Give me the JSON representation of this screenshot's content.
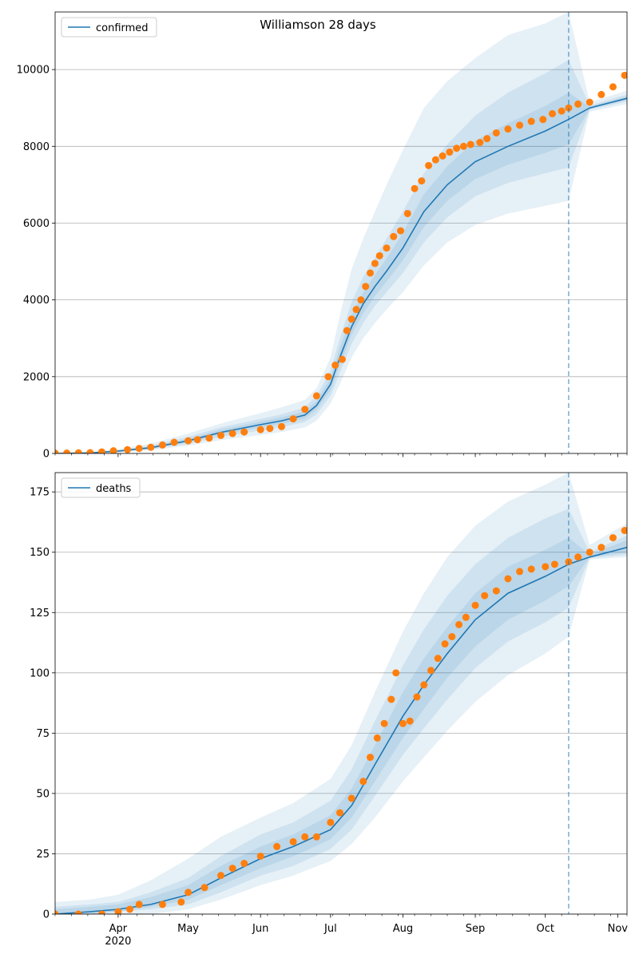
{
  "title": "Williamson 28 days",
  "colors": {
    "model": "#1f77b4",
    "observed": "#ff7f0e",
    "band": "#1f77b4",
    "grid": "#b0b0b0",
    "cutoff": "#1f77b4"
  },
  "chart_data": [
    {
      "type": "line",
      "legend": "confirmed",
      "legend_placement": "top-left",
      "x_start": "2020-03-05",
      "x_end": "2020-11-05",
      "xtick_labels": [
        "Apr",
        "May",
        "Jun",
        "Jul",
        "Aug",
        "Sep",
        "Oct",
        "Nov"
      ],
      "xtick_dates": [
        "2020-04-01",
        "2020-05-01",
        "2020-06-01",
        "2020-07-01",
        "2020-08-01",
        "2020-09-01",
        "2020-10-01",
        "2020-11-01"
      ],
      "year_label": "2020",
      "ylim": [
        0,
        11500
      ],
      "yticks": [
        0,
        2000,
        4000,
        6000,
        8000,
        10000
      ],
      "cutoff_date": "2020-10-11",
      "grid": true,
      "model_x": [
        "2020-03-05",
        "2020-03-20",
        "2020-04-01",
        "2020-04-15",
        "2020-05-01",
        "2020-05-15",
        "2020-06-01",
        "2020-06-10",
        "2020-06-20",
        "2020-06-25",
        "2020-07-01",
        "2020-07-05",
        "2020-07-10",
        "2020-07-15",
        "2020-07-20",
        "2020-07-25",
        "2020-08-01",
        "2020-08-10",
        "2020-08-20",
        "2020-09-01",
        "2020-09-15",
        "2020-10-01",
        "2020-10-11",
        "2020-10-20",
        "2020-11-05"
      ],
      "model_y": [
        0,
        15,
        60,
        150,
        330,
        550,
        750,
        850,
        1000,
        1250,
        1800,
        2500,
        3300,
        3900,
        4350,
        4750,
        5350,
        6300,
        7000,
        7600,
        8000,
        8400,
        8700,
        9000,
        9250
      ],
      "band_outer_low": [
        0,
        5,
        30,
        90,
        200,
        350,
        480,
        560,
        680,
        850,
        1300,
        1800,
        2500,
        3000,
        3400,
        3750,
        4200,
        4900,
        5500,
        5950,
        6250,
        6450,
        6580,
        8900,
        9100
      ],
      "band_outer_high": [
        0,
        30,
        110,
        260,
        520,
        780,
        1050,
        1200,
        1400,
        1700,
        2500,
        3600,
        4800,
        5600,
        6300,
        7000,
        7900,
        9000,
        9700,
        10300,
        10900,
        11200,
        11500,
        9150,
        9450
      ],
      "band_mid_low": [
        0,
        8,
        40,
        110,
        250,
        430,
        600,
        690,
        820,
        1020,
        1500,
        2100,
        2850,
        3400,
        3850,
        4200,
        4700,
        5500,
        6150,
        6700,
        7050,
        7300,
        7450,
        8950,
        9170
      ],
      "band_mid_high": [
        0,
        22,
        85,
        205,
        430,
        680,
        900,
        1020,
        1200,
        1500,
        2150,
        3000,
        3950,
        4600,
        5100,
        5600,
        6300,
        7300,
        8050,
        8800,
        9400,
        9900,
        10250,
        9070,
        9350
      ],
      "band_inner_low": [
        0,
        11,
        50,
        130,
        290,
        490,
        680,
        770,
        910,
        1140,
        1650,
        2300,
        3100,
        3650,
        4100,
        4480,
        5030,
        5900,
        6580,
        7150,
        7520,
        7830,
        8050,
        8980,
        9210
      ],
      "band_inner_high": [
        0,
        19,
        72,
        180,
        380,
        620,
        830,
        940,
        1100,
        1370,
        1960,
        2750,
        3600,
        4200,
        4650,
        5080,
        5750,
        6750,
        7480,
        8150,
        8600,
        9050,
        9400,
        9030,
        9300
      ],
      "observed_x": [
        "2020-03-05",
        "2020-03-10",
        "2020-03-15",
        "2020-03-20",
        "2020-03-25",
        "2020-03-30",
        "2020-04-05",
        "2020-04-10",
        "2020-04-15",
        "2020-04-20",
        "2020-04-25",
        "2020-05-01",
        "2020-05-05",
        "2020-05-10",
        "2020-05-15",
        "2020-05-20",
        "2020-05-25",
        "2020-06-01",
        "2020-06-05",
        "2020-06-10",
        "2020-06-15",
        "2020-06-20",
        "2020-06-25",
        "2020-06-30",
        "2020-07-03",
        "2020-07-06",
        "2020-07-08",
        "2020-07-10",
        "2020-07-12",
        "2020-07-14",
        "2020-07-16",
        "2020-07-18",
        "2020-07-20",
        "2020-07-22",
        "2020-07-25",
        "2020-07-28",
        "2020-07-31",
        "2020-08-03",
        "2020-08-06",
        "2020-08-09",
        "2020-08-12",
        "2020-08-15",
        "2020-08-18",
        "2020-08-21",
        "2020-08-24",
        "2020-08-27",
        "2020-08-30",
        "2020-09-03",
        "2020-09-06",
        "2020-09-10",
        "2020-09-15",
        "2020-09-20",
        "2020-09-25",
        "2020-09-30",
        "2020-10-04",
        "2020-10-08",
        "2020-10-11",
        "2020-10-15",
        "2020-10-20",
        "2020-10-25",
        "2020-10-30",
        "2020-11-04"
      ],
      "observed_y": [
        10,
        10,
        15,
        20,
        40,
        70,
        100,
        130,
        160,
        220,
        290,
        330,
        360,
        400,
        470,
        520,
        560,
        620,
        650,
        700,
        900,
        1150,
        1500,
        2000,
        2300,
        2450,
        3200,
        3500,
        3750,
        4000,
        4350,
        4700,
        4950,
        5150,
        5350,
        5650,
        5800,
        6250,
        6900,
        7100,
        7500,
        7650,
        7750,
        7850,
        7950,
        8000,
        8050,
        8100,
        8200,
        8350,
        8450,
        8550,
        8650,
        8700,
        8850,
        8920,
        9000,
        9100,
        9150,
        9350,
        9550,
        9850
      ]
    },
    {
      "type": "line",
      "legend": "deaths",
      "legend_placement": "top-left",
      "x_start": "2020-03-05",
      "x_end": "2020-11-05",
      "xtick_labels": [
        "Apr",
        "May",
        "Jun",
        "Jul",
        "Aug",
        "Sep",
        "Oct",
        "Nov"
      ],
      "xtick_dates": [
        "2020-04-01",
        "2020-05-01",
        "2020-06-01",
        "2020-07-01",
        "2020-08-01",
        "2020-09-01",
        "2020-10-01",
        "2020-11-01"
      ],
      "year_label": "2020",
      "ylim": [
        0,
        183
      ],
      "yticks": [
        0,
        25,
        50,
        75,
        100,
        125,
        150,
        175
      ],
      "cutoff_date": "2020-10-11",
      "grid": true,
      "model_x": [
        "2020-03-05",
        "2020-03-20",
        "2020-04-01",
        "2020-04-15",
        "2020-05-01",
        "2020-05-15",
        "2020-06-01",
        "2020-06-15",
        "2020-07-01",
        "2020-07-10",
        "2020-07-20",
        "2020-08-01",
        "2020-08-10",
        "2020-08-20",
        "2020-09-01",
        "2020-09-15",
        "2020-10-01",
        "2020-10-11",
        "2020-10-20",
        "2020-11-05"
      ],
      "model_y": [
        0,
        1,
        2,
        4,
        8,
        15,
        23,
        28,
        35,
        45,
        62,
        82,
        95,
        108,
        122,
        133,
        140,
        145,
        148,
        152
      ],
      "band_outer_low": [
        0,
        0,
        0,
        0,
        2,
        6,
        12,
        16,
        22,
        29,
        40,
        55,
        65,
        76,
        88,
        99,
        108,
        115,
        147,
        148
      ],
      "band_outer_high": [
        5,
        6,
        8,
        14,
        23,
        32,
        40,
        46,
        56,
        70,
        92,
        117,
        133,
        148,
        161,
        171,
        178,
        183,
        153,
        162
      ],
      "band_mid_low": [
        0,
        0,
        1,
        2,
        4,
        9,
        16,
        20,
        27,
        35,
        49,
        66,
        77,
        89,
        102,
        113,
        121,
        127,
        147.5,
        149
      ],
      "band_mid_high": [
        3,
        4,
        5,
        9,
        15,
        24,
        33,
        38,
        47,
        60,
        80,
        103,
        118,
        132,
        145,
        156,
        164,
        168,
        150,
        157
      ],
      "band_inner_low": [
        0,
        0,
        1,
        3,
        6,
        12,
        19,
        24,
        31,
        40,
        55,
        73,
        85,
        98,
        111,
        122,
        130,
        136,
        148,
        150
      ],
      "band_inner_high": [
        2,
        3,
        4,
        7,
        12,
        20,
        28,
        33,
        41,
        52,
        70,
        92,
        106,
        119,
        133,
        144,
        151,
        156,
        149,
        155
      ],
      "observed_x": [
        "2020-03-05",
        "2020-03-15",
        "2020-03-25",
        "2020-04-01",
        "2020-04-06",
        "2020-04-10",
        "2020-04-20",
        "2020-04-28",
        "2020-05-01",
        "2020-05-08",
        "2020-05-15",
        "2020-05-20",
        "2020-05-25",
        "2020-06-01",
        "2020-06-08",
        "2020-06-15",
        "2020-06-20",
        "2020-06-25",
        "2020-07-01",
        "2020-07-05",
        "2020-07-10",
        "2020-07-15",
        "2020-07-18",
        "2020-07-21",
        "2020-07-24",
        "2020-07-27",
        "2020-07-29",
        "2020-08-01",
        "2020-08-04",
        "2020-08-07",
        "2020-08-10",
        "2020-08-13",
        "2020-08-16",
        "2020-08-19",
        "2020-08-22",
        "2020-08-25",
        "2020-08-28",
        "2020-09-01",
        "2020-09-05",
        "2020-09-10",
        "2020-09-15",
        "2020-09-20",
        "2020-09-25",
        "2020-10-01",
        "2020-10-05",
        "2020-10-11",
        "2020-10-15",
        "2020-10-20",
        "2020-10-25",
        "2020-10-30",
        "2020-11-04"
      ],
      "observed_y": [
        0,
        0,
        0,
        1,
        2,
        4,
        4,
        5,
        9,
        11,
        16,
        19,
        21,
        24,
        28,
        30,
        32,
        32,
        38,
        42,
        48,
        55,
        65,
        73,
        79,
        89,
        100,
        79,
        80,
        90,
        95,
        101,
        106,
        112,
        115,
        120,
        123,
        128,
        132,
        134,
        139,
        142,
        143,
        144,
        145,
        146,
        148,
        150,
        152,
        156,
        159
      ]
    }
  ]
}
